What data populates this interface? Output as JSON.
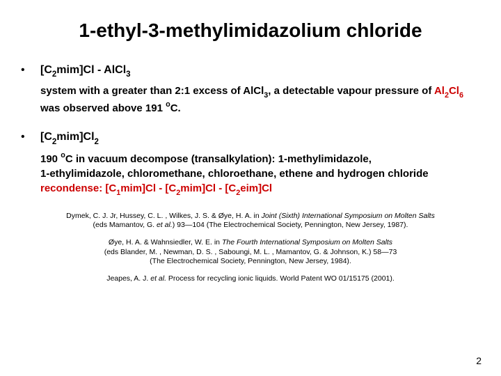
{
  "colors": {
    "text": "#000000",
    "accent": "#cc0000",
    "background": "#ffffff"
  },
  "typography": {
    "title_fontsize": 28,
    "body_fontsize": 16,
    "sub_fontsize": 15,
    "refs_fontsize": 10.5,
    "font_family": "Arial",
    "weight_body": "bold"
  },
  "title": "1-ethyl-3-methylimidazolium chloride",
  "bullets": [
    {
      "heading_parts": [
        "[C",
        "2",
        "mim]Cl - AlCl",
        "3"
      ],
      "sub_parts": [
        {
          "t": "system with a greater than 2:1 excess of AlCl",
          "kind": "plain"
        },
        {
          "t": "3",
          "kind": "sub"
        },
        {
          "t": ", a detectable vapour pressure of ",
          "kind": "plain"
        },
        {
          "t": "Al",
          "kind": "red"
        },
        {
          "t": "2",
          "kind": "redsub"
        },
        {
          "t": "Cl",
          "kind": "red"
        },
        {
          "t": "6",
          "kind": "redsub"
        },
        {
          "t": " was observed above 191 ",
          "kind": "plain"
        },
        {
          "t": "o",
          "kind": "sup"
        },
        {
          "t": "C.",
          "kind": "plain"
        }
      ]
    },
    {
      "heading_parts": [
        "[C",
        "2",
        "mim]Cl",
        "2"
      ],
      "sub_parts": [
        {
          "t": "190 ",
          "kind": "plain"
        },
        {
          "t": "o",
          "kind": "sup"
        },
        {
          "t": "C in vacuum decompose (transalkylation): 1-methylimidazole,",
          "kind": "plain"
        },
        {
          "t": "\n",
          "kind": "br"
        },
        {
          "t": "1-ethylimidazole, chloromethane, chloroethane, ethene and hydrogen chloride",
          "kind": "plain"
        },
        {
          "t": "\n",
          "kind": "br"
        },
        {
          "t": "recondense: [C",
          "kind": "red"
        },
        {
          "t": "1",
          "kind": "redsub"
        },
        {
          "t": "mim]Cl - [C",
          "kind": "red"
        },
        {
          "t": "2",
          "kind": "redsub"
        },
        {
          "t": "mim]Cl - [C",
          "kind": "red"
        },
        {
          "t": "2",
          "kind": "redsub"
        },
        {
          "t": "eim]Cl",
          "kind": "red"
        }
      ]
    }
  ],
  "refs": [
    {
      "parts": [
        {
          "t": "Dymek, C. J. Jr, Hussey, C. L. , Wilkes, J. S. & Øye, H. A. in ",
          "kind": "plain"
        },
        {
          "t": "Joint (Sixth) International Symposium on Molten Salts",
          "kind": "italic"
        },
        {
          "t": "\n(eds Mamantov, G. ",
          "kind": "plain"
        },
        {
          "t": "et al.",
          "kind": "italic"
        },
        {
          "t": ") 93—104 (The Electrochemical Society, Pennington, New Jersey, 1987).",
          "kind": "plain"
        }
      ]
    },
    {
      "parts": [
        {
          "t": "Øye, H. A. & Wahnsiedler, W. E. in ",
          "kind": "plain"
        },
        {
          "t": "The Fourth International Symposium on Molten Salts",
          "kind": "italic"
        },
        {
          "t": "\n(eds Blander, M. , Newman, D. S. , Saboungi, M. L. , Mamantov, G. & Johnson, K.) 58—73\n(The Electrochemical Society, Pennington, New Jersey, 1984).",
          "kind": "plain"
        }
      ]
    },
    {
      "parts": [
        {
          "t": "Jeapes, A. J. ",
          "kind": "plain"
        },
        {
          "t": "et al.",
          "kind": "italic"
        },
        {
          "t": " Process for recycling ionic liquids. World Patent WO 01/15175 (2001).",
          "kind": "plain"
        }
      ]
    }
  ],
  "page_number": "2"
}
